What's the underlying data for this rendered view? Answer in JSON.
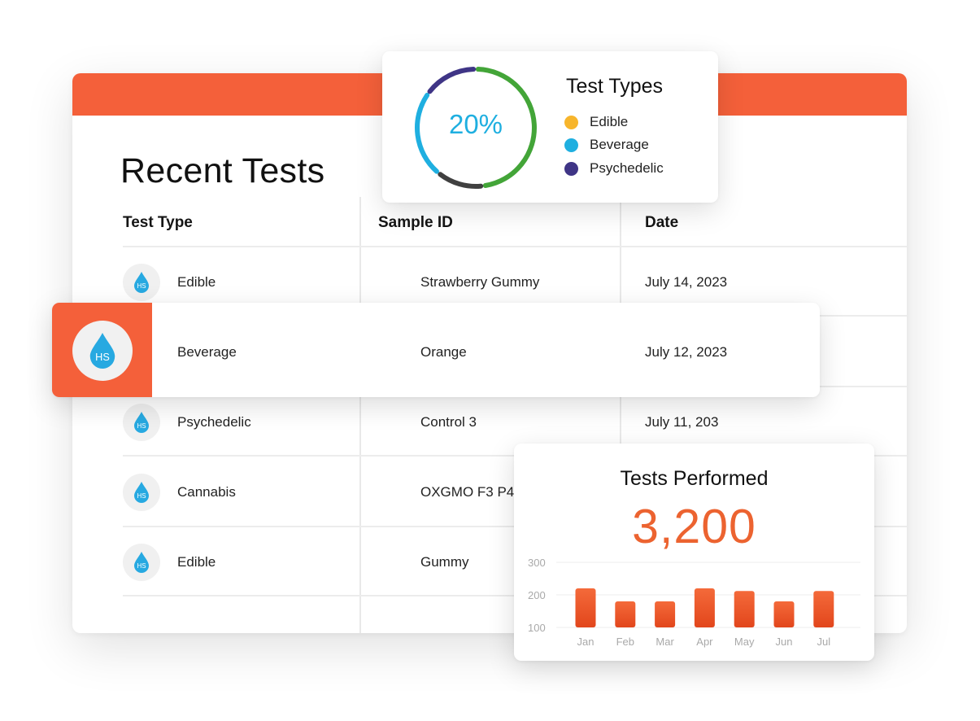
{
  "colors": {
    "brand_orange": "#f4603a",
    "edible": "#f7b52c",
    "beverage": "#1fafe0",
    "psychedelic": "#3f3586",
    "ring_green": "#43a538",
    "ring_dark": "#404040",
    "total_orange": "#ec6330",
    "drop_blue": "#27a9e1"
  },
  "icons": {
    "sample_badge": "water-drop-icon"
  },
  "recent_tests": {
    "title": "Recent Tests",
    "columns": [
      "Test Type",
      "Sample ID",
      "Date"
    ],
    "badge_text": "HS",
    "rows": [
      {
        "test_type": "Edible",
        "sample_id": "Strawberry Gummy",
        "date": "July 14, 2023"
      },
      {
        "test_type": "Beverage",
        "sample_id": "Orange",
        "date": "July 12, 2023",
        "highlighted": true
      },
      {
        "test_type": "Psychedelic",
        "sample_id": "Control 3",
        "date": "July 11, 203"
      },
      {
        "test_type": "Cannabis",
        "sample_id": "OXGMO F3 P4",
        "date": ""
      },
      {
        "test_type": "Edible",
        "sample_id": "Gummy",
        "date": ""
      }
    ]
  },
  "test_types": {
    "title": "Test Types",
    "center_value": "20%",
    "legend": [
      {
        "label": "Edible",
        "color": "#f7b52c"
      },
      {
        "label": "Beverage",
        "color": "#1fafe0"
      },
      {
        "label": "Psychedelic",
        "color": "#3f3586"
      }
    ]
  },
  "tests_performed": {
    "title": "Tests Performed",
    "total": "3,200"
  },
  "chart_data": [
    {
      "type": "pie",
      "center_label": "20%",
      "legend": [
        "Edible",
        "Beverage",
        "Psychedelic"
      ],
      "segments": [
        {
          "color": "#43a538",
          "share": 0.48
        },
        {
          "color": "#404040",
          "share": 0.13
        },
        {
          "color": "#1fafe0",
          "share": 0.24
        },
        {
          "color": "#3f3586",
          "share": 0.15
        }
      ]
    },
    {
      "type": "bar",
      "title": "Tests Performed",
      "categories": [
        "Jan",
        "Feb",
        "Mar",
        "Apr",
        "May",
        "Jun",
        "Jul"
      ],
      "values": [
        220,
        180,
        180,
        220,
        212,
        180,
        212
      ],
      "yticks": [
        100,
        200,
        300
      ],
      "ylim": [
        100,
        300
      ],
      "grid": true
    }
  ]
}
